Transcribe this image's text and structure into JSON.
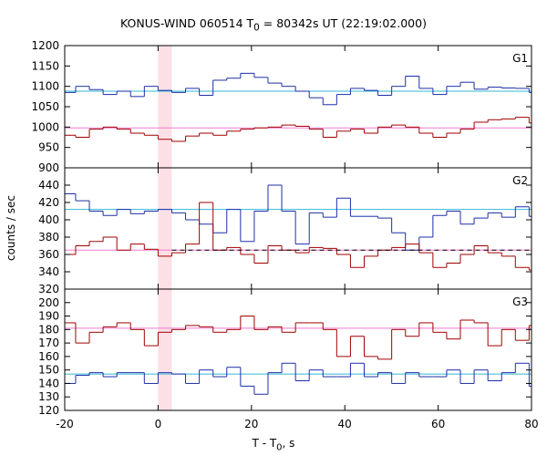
{
  "chart_data": {
    "type": "line",
    "title_parts": {
      "prefix": "KONUS-WIND 060514 T",
      "sub": "0",
      "suffix": " = 80342s UT (22:19:02.000)"
    },
    "ylabel": "counts / sec",
    "xlabel_parts": {
      "prefix": "T - T",
      "sub": "0",
      "suffix": ", s"
    },
    "xlim": [
      -20,
      80
    ],
    "x_ticks": [
      -20,
      0,
      20,
      40,
      60,
      80
    ],
    "highlight_interval": {
      "x0": 0,
      "x1": 2.944,
      "color": "#fde0e6"
    },
    "bin_width_s": 2.944,
    "bin_start_s": -20.608,
    "colors": {
      "blue": "#1c2fa8",
      "red": "#a00000",
      "cyan": "#33b8d6",
      "pink": "#f07ad0"
    },
    "panels": [
      {
        "name": "G1",
        "ylim": [
          900,
          1200
        ],
        "y_ticks": [
          900,
          950,
          1000,
          1050,
          1100,
          1150,
          1200
        ],
        "series": [
          {
            "color": "blue",
            "background_level": 1088,
            "background_color": "cyan",
            "values": [
              1085,
              1100,
              1092,
              1080,
              1088,
              1075,
              1100,
              1090,
              1085,
              1095,
              1078,
              1115,
              1120,
              1132,
              1122,
              1108,
              1100,
              1088,
              1072,
              1055,
              1080,
              1095,
              1090,
              1078,
              1100,
              1125,
              1095,
              1080,
              1100,
              1110,
              1093,
              1098,
              1096,
              1095,
              1085,
              1110,
              1110,
              1097,
              1118,
              1090,
              1097,
              1086,
              1110,
              1098,
              1105
            ]
          },
          {
            "color": "red",
            "background_level": 998,
            "background_color": "pink",
            "values": [
              980,
              975,
              995,
              1000,
              995,
              985,
              980,
              970,
              965,
              978,
              985,
              980,
              990,
              995,
              998,
              1000,
              1005,
              1002,
              995,
              975,
              990,
              995,
              985,
              1000,
              1005,
              1000,
              985,
              975,
              985,
              995,
              1012,
              1018,
              1020,
              1024,
              1010,
              1005,
              990,
              985,
              995,
              1005,
              975,
              985,
              1000,
              995,
              1008
            ]
          }
        ]
      },
      {
        "name": "G2",
        "ylim": [
          320,
          460
        ],
        "y_ticks": [
          320,
          340,
          360,
          380,
          400,
          420,
          440
        ],
        "series": [
          {
            "color": "blue",
            "background_level": 412,
            "background_color": "cyan",
            "values": [
              430,
              422,
              410,
              405,
              412,
              407,
              410,
              412,
              408,
              400,
              395,
              385,
              412,
              375,
              410,
              440,
              410,
              372,
              408,
              403,
              425,
              404,
              404,
              402,
              385,
              365,
              380,
              405,
              410,
              395,
              402,
              408,
              403,
              415,
              404,
              410,
              400,
              425,
              430,
              422,
              418,
              409,
              402,
              415,
              408
            ]
          },
          {
            "color": "red",
            "background_level": 365,
            "background_color": "pink",
            "values": [
              360,
              370,
              375,
              380,
              365,
              372,
              366,
              358,
              362,
              372,
              420,
              365,
              368,
              360,
              350,
              370,
              365,
              362,
              368,
              367,
              360,
              345,
              358,
              365,
              368,
              372,
              362,
              345,
              350,
              360,
              370,
              362,
              358,
              345,
              342,
              365,
              355,
              368,
              362,
              372,
              355,
              370,
              350,
              365,
              370
            ],
            "fit_line": {
              "level": 365,
              "dash": true,
              "x_from": 2.944
            }
          }
        ]
      },
      {
        "name": "G3",
        "ylim": [
          120,
          210
        ],
        "y_ticks": [
          120,
          130,
          140,
          150,
          160,
          170,
          180,
          190,
          200
        ],
        "series": [
          {
            "color": "red",
            "background_level": 181,
            "background_color": "pink",
            "values": [
              185,
              170,
              178,
              182,
              185,
              180,
              168,
              178,
              180,
              183,
              182,
              178,
              180,
              190,
              180,
              182,
              178,
              185,
              185,
              180,
              160,
              175,
              160,
              158,
              180,
              175,
              185,
              178,
              173,
              187,
              185,
              168,
              180,
              172,
              183,
              175,
              168,
              187,
              172,
              168,
              180,
              186,
              178,
              183,
              185
            ]
          },
          {
            "color": "blue",
            "background_level": 147,
            "background_color": "cyan",
            "values": [
              140,
              146,
              148,
              145,
              148,
              148,
              140,
              148,
              147,
              140,
              150,
              145,
              152,
              138,
              132,
              148,
              155,
              142,
              150,
              145,
              145,
              155,
              145,
              148,
              140,
              148,
              145,
              145,
              150,
              140,
              150,
              142,
              148,
              155,
              138,
              145,
              140,
              152,
              130,
              140,
              148,
              150,
              148,
              150,
              140
            ]
          }
        ]
      }
    ],
    "grid": false,
    "legend": "none"
  }
}
